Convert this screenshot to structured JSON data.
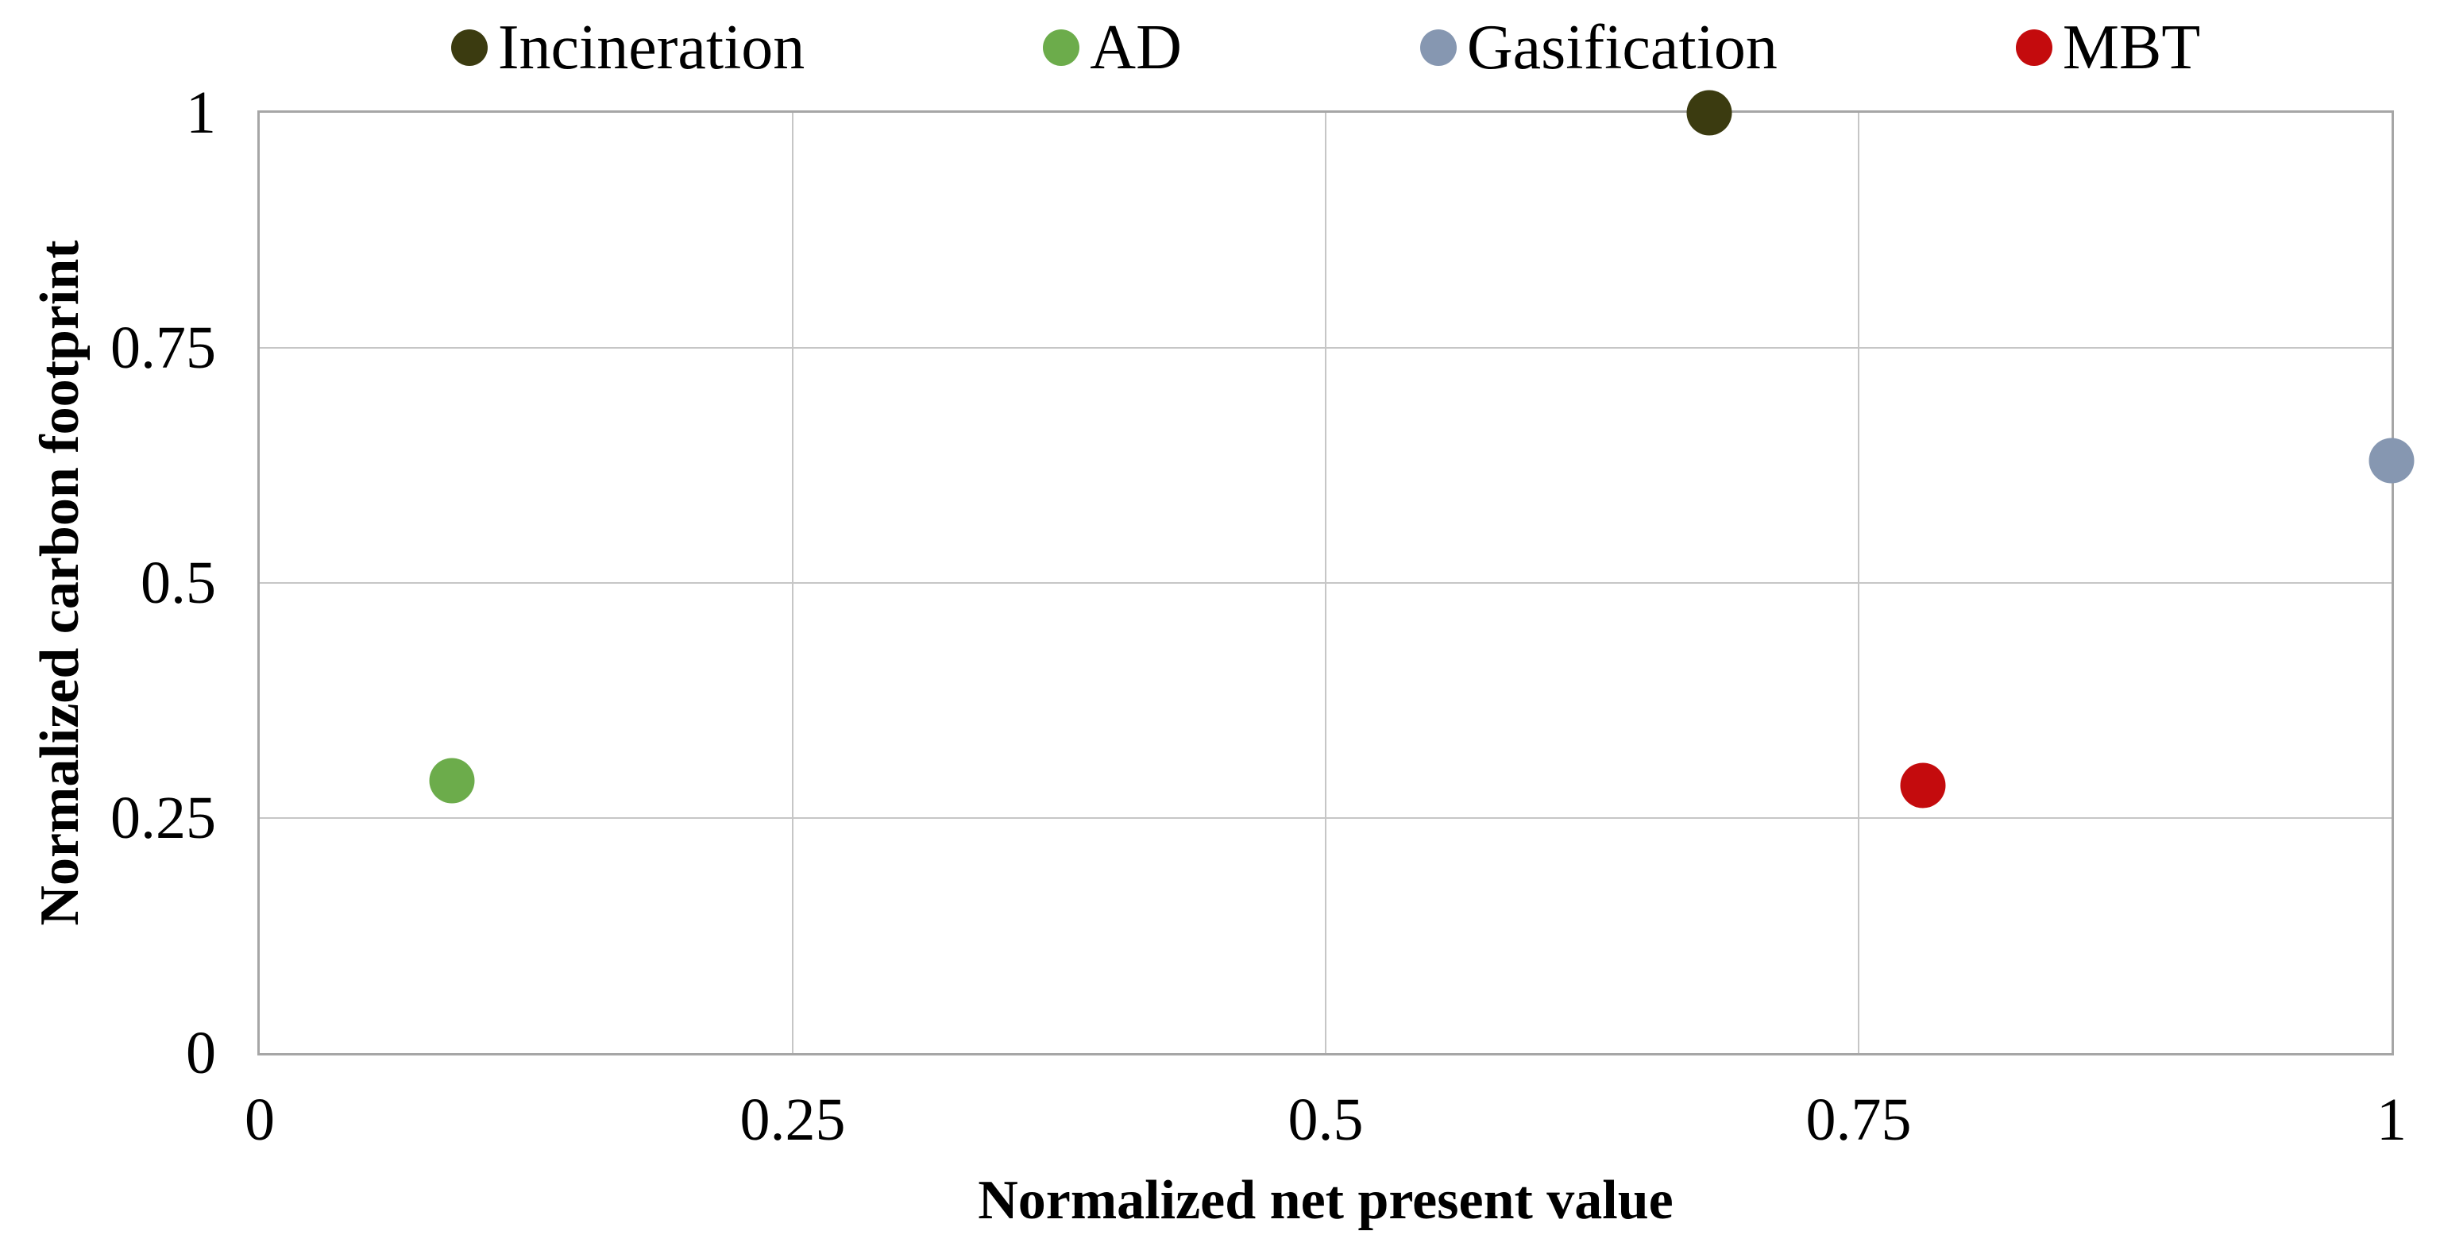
{
  "chart_data": {
    "type": "scatter",
    "title": "",
    "xlabel": "Normalized net present value",
    "ylabel": "Normalized carbon footprint",
    "xlim": [
      0,
      1
    ],
    "ylim": [
      0,
      1
    ],
    "grid": true,
    "legend_position": "top",
    "x_ticks": {
      "values": [
        0,
        0.25,
        0.5,
        0.75,
        1
      ],
      "labels": [
        "0",
        "0.25",
        "0.5",
        "0.75",
        "1"
      ]
    },
    "y_ticks": {
      "values": [
        0,
        0.25,
        0.5,
        0.75,
        1
      ],
      "labels": [
        "0",
        "0.25",
        "0.5",
        "0.75",
        "1"
      ]
    },
    "series": [
      {
        "name": "Incineration",
        "color": "#3b3b10",
        "points": [
          {
            "x": 0.68,
            "y": 1.0
          }
        ]
      },
      {
        "name": "AD",
        "color": "#6cac4b",
        "points": [
          {
            "x": 0.09,
            "y": 0.29
          }
        ]
      },
      {
        "name": "Gasification",
        "color": "#8697b1",
        "points": [
          {
            "x": 1.0,
            "y": 0.63
          }
        ]
      },
      {
        "name": "MBT",
        "color": "#c40b0d",
        "points": [
          {
            "x": 0.78,
            "y": 0.285
          }
        ]
      }
    ]
  },
  "colors": {
    "background": "#ffffff",
    "plot_border": "#a6a6a6",
    "gridline": "#c6c6c6",
    "text": "#000000"
  }
}
